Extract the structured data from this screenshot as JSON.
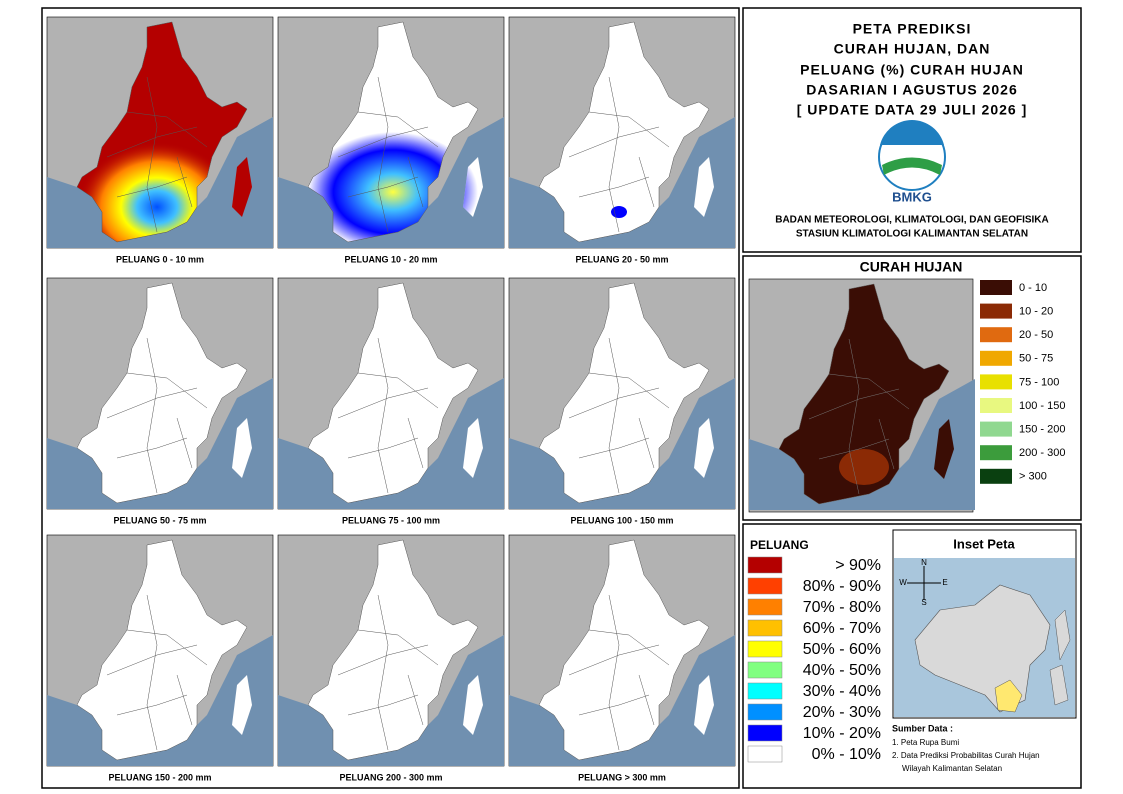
{
  "panels": [
    "PELUANG 0 - 10 mm",
    "PELUANG 10 - 20 mm",
    "PELUANG 20 - 50 mm",
    "PELUANG 50 - 75 mm",
    "PELUANG 75 - 100 mm",
    "PELUANG 100 - 150 mm",
    "PELUANG 150 - 200 mm",
    "PELUANG 200 - 300 mm",
    "PELUANG > 300 mm"
  ],
  "title": {
    "lines": [
      "PETA PREDIKSI",
      "CURAH HUJAN, DAN",
      "PELUANG (%) CURAH HUJAN",
      "DASARIAN I AGUSTUS 2026",
      "[ UPDATE DATA 29 JULI 2026 ]"
    ]
  },
  "logo_text": "BMKG",
  "agency": [
    "BADAN METEOROLOGI, KLIMATOLOGI, DAN GEOFISIKA",
    "STASIUN KLIMATOLOGI KALIMANTAN SELATAN"
  ],
  "rainfall_legend": {
    "title": "CURAH HUJAN",
    "items": [
      {
        "label": "0 - 10",
        "color": "#3a0d05"
      },
      {
        "label": "10 - 20",
        "color": "#8b2a05"
      },
      {
        "label": "20 - 50",
        "color": "#e06a10"
      },
      {
        "label": "50 - 75",
        "color": "#f0a800"
      },
      {
        "label": "75 - 100",
        "color": "#e8e000"
      },
      {
        "label": "100 - 150",
        "color": "#e8f880"
      },
      {
        "label": "150 - 200",
        "color": "#90d890"
      },
      {
        "label": "200 - 300",
        "color": "#3c9c3c"
      },
      {
        "label": "> 300",
        "color": "#0a4010"
      }
    ]
  },
  "probability_legend": {
    "title": "PELUANG",
    "items": [
      {
        "label": "> 90%",
        "color": "#b40000"
      },
      {
        "label": "80% - 90%",
        "color": "#ff4000"
      },
      {
        "label": "70% - 80%",
        "color": "#ff8000"
      },
      {
        "label": "60% - 70%",
        "color": "#ffc000"
      },
      {
        "label": "50% - 60%",
        "color": "#ffff00"
      },
      {
        "label": "40% - 50%",
        "color": "#80ff80"
      },
      {
        "label": "30% - 40%",
        "color": "#00ffff"
      },
      {
        "label": "20% - 30%",
        "color": "#0090ff"
      },
      {
        "label": "10% - 20%",
        "color": "#0000ff"
      },
      {
        "label": "0% - 10%",
        "color": "#ffffff"
      }
    ]
  },
  "inset": {
    "title": "Inset Peta",
    "compass": {
      "north": "N",
      "south": "S",
      "east": "E",
      "west": "W"
    }
  },
  "sources": {
    "title": "Sumber Data :",
    "items": [
      "1. Peta Rupa Bumi",
      "2. Data Prediksi Probabilitas Curah Hujan",
      "Wilayah Kalimantan Selatan"
    ]
  }
}
